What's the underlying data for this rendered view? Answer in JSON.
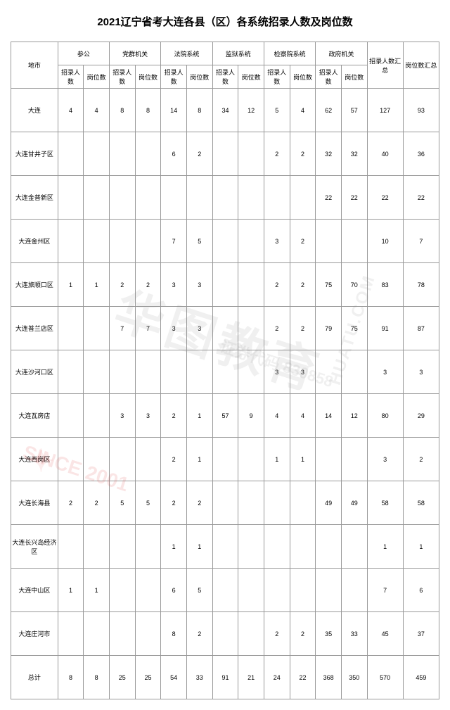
{
  "title": "2021辽宁省考大连各县（区）各系统招录人数及岗位数",
  "colgroups": {
    "region": "地市",
    "groups": [
      "参公",
      "党群机关",
      "法院系统",
      "监狱系统",
      "检察院系统",
      "政府机关"
    ],
    "sub": [
      "招录人数",
      "岗位数"
    ],
    "sum_recruit": "招录人数汇总",
    "sum_post": "岗位数汇总"
  },
  "rows": [
    {
      "region": "大连",
      "v": [
        "4",
        "4",
        "8",
        "8",
        "14",
        "8",
        "34",
        "12",
        "5",
        "4",
        "62",
        "57"
      ],
      "s": [
        "127",
        "93"
      ]
    },
    {
      "region": "大连甘井子区",
      "v": [
        "",
        "",
        "",
        "",
        "6",
        "2",
        "",
        "",
        "2",
        "2",
        "32",
        "32"
      ],
      "s": [
        "40",
        "36"
      ]
    },
    {
      "region": "大连金普新区",
      "v": [
        "",
        "",
        "",
        "",
        "",
        "",
        "",
        "",
        "",
        "",
        "22",
        "22"
      ],
      "s": [
        "22",
        "22"
      ]
    },
    {
      "region": "大连金州区",
      "v": [
        "",
        "",
        "",
        "",
        "7",
        "5",
        "",
        "",
        "3",
        "2",
        "",
        ""
      ],
      "s": [
        "10",
        "7"
      ]
    },
    {
      "region": "大连旅顺口区",
      "v": [
        "1",
        "1",
        "2",
        "2",
        "3",
        "3",
        "",
        "",
        "2",
        "2",
        "75",
        "70"
      ],
      "s": [
        "83",
        "78"
      ]
    },
    {
      "region": "大连普兰店区",
      "v": [
        "",
        "",
        "7",
        "7",
        "3",
        "3",
        "",
        "",
        "2",
        "2",
        "79",
        "75"
      ],
      "s": [
        "91",
        "87"
      ]
    },
    {
      "region": "大连沙河口区",
      "v": [
        "",
        "",
        "",
        "",
        "",
        "",
        "",
        "",
        "3",
        "3",
        "",
        ""
      ],
      "s": [
        "3",
        "3"
      ]
    },
    {
      "region": "大连瓦房店",
      "v": [
        "",
        "",
        "3",
        "3",
        "2",
        "1",
        "57",
        "9",
        "4",
        "4",
        "14",
        "12"
      ],
      "s": [
        "80",
        "29"
      ]
    },
    {
      "region": "大连西岗区",
      "v": [
        "",
        "",
        "",
        "",
        "2",
        "1",
        "",
        "",
        "1",
        "1",
        "",
        ""
      ],
      "s": [
        "3",
        "2"
      ]
    },
    {
      "region": "大连长海县",
      "v": [
        "2",
        "2",
        "5",
        "5",
        "2",
        "2",
        "",
        "",
        "",
        "",
        "49",
        "49"
      ],
      "s": [
        "58",
        "58"
      ]
    },
    {
      "region": "大连长兴岛经济区",
      "v": [
        "",
        "",
        "",
        "",
        "1",
        "1",
        "",
        "",
        "",
        "",
        "",
        ""
      ],
      "s": [
        "1",
        "1"
      ]
    },
    {
      "region": "大连中山区",
      "v": [
        "1",
        "1",
        "",
        "",
        "6",
        "5",
        "",
        "",
        "",
        "",
        "",
        ""
      ],
      "s": [
        "7",
        "6"
      ]
    },
    {
      "region": "大连庄河市",
      "v": [
        "",
        "",
        "",
        "",
        "8",
        "2",
        "",
        "",
        "2",
        "2",
        "35",
        "33"
      ],
      "s": [
        "45",
        "37"
      ]
    },
    {
      "region": "总计",
      "v": [
        "8",
        "8",
        "25",
        "25",
        "54",
        "33",
        "91",
        "21",
        "24",
        "22",
        "368",
        "350"
      ],
      "s": [
        "570",
        "459"
      ]
    }
  ],
  "watermark": {
    "main": "华图教育",
    "code": "证券代码 830858",
    "url": "HUATU.COM",
    "since": "SINCE 2001"
  }
}
